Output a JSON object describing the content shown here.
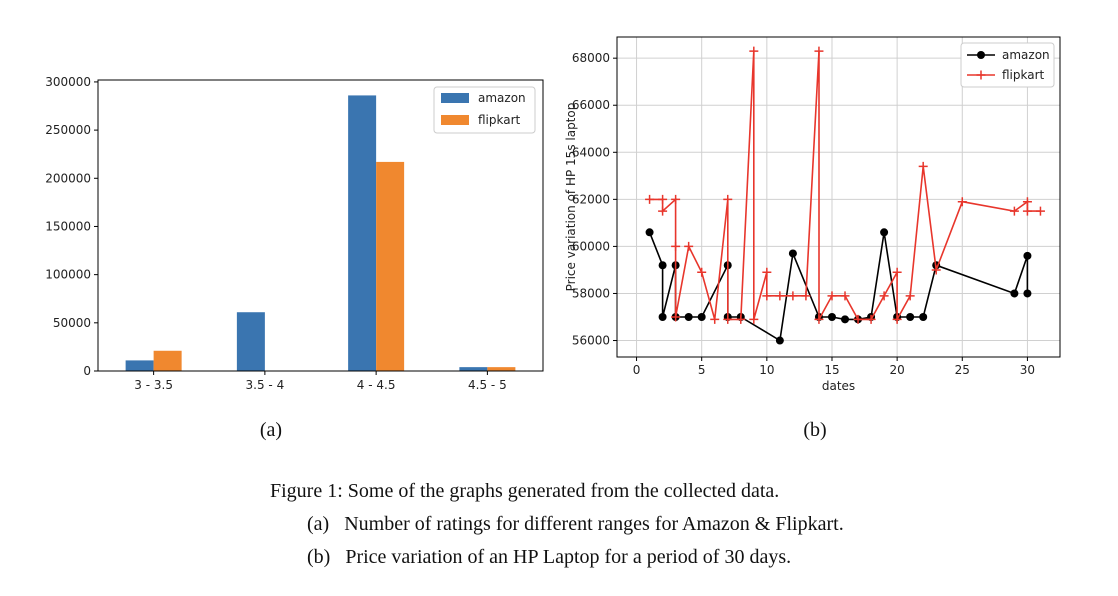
{
  "chart_data": [
    {
      "type": "bar",
      "panel_label": "(a)",
      "categories": [
        "3 - 3.5",
        "3.5 - 4",
        "4 - 4.5",
        "4.5 - 5"
      ],
      "series": [
        {
          "name": "amazon",
          "color": "#3a75b0",
          "values": [
            11000,
            61000,
            286000,
            4000
          ]
        },
        {
          "name": "flipkart",
          "color": "#f0882f",
          "values": [
            21000,
            0,
            217000,
            4000
          ]
        }
      ],
      "yticks": [
        0,
        50000,
        100000,
        150000,
        200000,
        250000,
        300000
      ],
      "ylim": [
        0,
        302000
      ],
      "legend": "top-right",
      "grid": false
    },
    {
      "type": "line",
      "panel_label": "(b)",
      "xlabel": "dates",
      "ylabel": "Price variation of HP 15s laptop",
      "xlim": [
        -1.5,
        32.5
      ],
      "ylim": [
        55300,
        68900
      ],
      "xticks": [
        0,
        5,
        10,
        15,
        20,
        25,
        30
      ],
      "yticks": [
        56000,
        58000,
        60000,
        62000,
        64000,
        66000,
        68000
      ],
      "grid": true,
      "legend": "top-right",
      "series": [
        {
          "name": "amazon",
          "color": "#000000",
          "marker": "o",
          "points": [
            [
              1,
              60600
            ],
            [
              2,
              59200
            ],
            [
              2,
              57000
            ],
            [
              3,
              59200
            ],
            [
              3,
              57000
            ],
            [
              4,
              57000
            ],
            [
              5,
              57000
            ],
            [
              7,
              59200
            ],
            [
              7,
              57000
            ],
            [
              8,
              57000
            ],
            [
              11,
              56000
            ],
            [
              12,
              59700
            ],
            [
              14,
              57000
            ],
            [
              15,
              57000
            ],
            [
              16,
              56900
            ],
            [
              17,
              56900
            ],
            [
              18,
              57000
            ],
            [
              19,
              60600
            ],
            [
              20,
              57000
            ],
            [
              21,
              57000
            ],
            [
              22,
              57000
            ],
            [
              23,
              59200
            ],
            [
              29,
              58000
            ],
            [
              30,
              59600
            ],
            [
              30,
              58000
            ]
          ]
        },
        {
          "name": "flipkart",
          "color": "#e8362c",
          "marker": "+",
          "points": [
            [
              1,
              62000
            ],
            [
              2,
              62000
            ],
            [
              2,
              61500
            ],
            [
              3,
              62000
            ],
            [
              3,
              60000
            ],
            [
              3,
              57000
            ],
            [
              4,
              60000
            ],
            [
              5,
              58900
            ],
            [
              6,
              56900
            ],
            [
              7,
              62000
            ],
            [
              7,
              56900
            ],
            [
              8,
              56900
            ],
            [
              9,
              68300
            ],
            [
              9,
              56900
            ],
            [
              10,
              58900
            ],
            [
              10,
              57900
            ],
            [
              11,
              57900
            ],
            [
              12,
              57900
            ],
            [
              13,
              57900
            ],
            [
              14,
              68300
            ],
            [
              14,
              56900
            ],
            [
              15,
              57900
            ],
            [
              16,
              57900
            ],
            [
              17,
              56900
            ],
            [
              18,
              56900
            ],
            [
              19,
              57900
            ],
            [
              20,
              58900
            ],
            [
              20,
              56900
            ],
            [
              21,
              57900
            ],
            [
              22,
              63400
            ],
            [
              23,
              59000
            ],
            [
              25,
              61900
            ],
            [
              29,
              61500
            ],
            [
              30,
              61900
            ],
            [
              30,
              61500
            ],
            [
              31,
              61500
            ]
          ]
        }
      ]
    }
  ],
  "caption": {
    "main": "Figure 1: Some of the graphs generated from the collected data.",
    "items": [
      "(a)   Number of ratings for different ranges for Amazon & Flipkart.",
      "(b)   Price variation of an HP Laptop for a period of 30 days."
    ]
  }
}
